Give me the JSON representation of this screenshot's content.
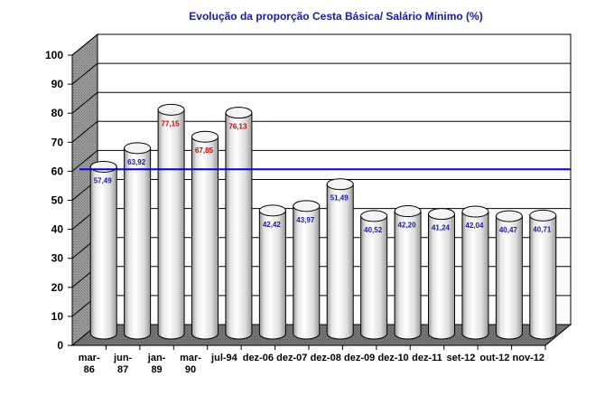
{
  "chart_data": {
    "type": "bar",
    "title": "Evolução da proporção Cesta Básica/ Salário Mínimo (%)",
    "categories": [
      [
        "mar-",
        "86"
      ],
      [
        "jun-",
        "87"
      ],
      [
        "jan-",
        "89"
      ],
      [
        "mar-",
        "90"
      ],
      [
        "jul-94"
      ],
      [
        "dez-06"
      ],
      [
        "dez-07"
      ],
      [
        "dez-08"
      ],
      [
        "dez-09"
      ],
      [
        "dez-10"
      ],
      [
        "dez-11"
      ],
      [
        "set-12"
      ],
      [
        "out-12"
      ],
      [
        "nov-12"
      ]
    ],
    "values": [
      57.49,
      63.92,
      77.15,
      67.85,
      76.13,
      42.42,
      43.97,
      51.49,
      40.52,
      42.2,
      41.24,
      42.04,
      40.47,
      40.71
    ],
    "value_labels": [
      "57,49",
      "63,92",
      "77,15",
      "67,85",
      "76,13",
      "42,42",
      "43,97",
      "51,49",
      "40,52",
      "42,20",
      "41,24",
      "42,04",
      "40,47",
      "40,71"
    ],
    "highlight": [
      false,
      false,
      true,
      true,
      true,
      false,
      false,
      false,
      false,
      false,
      false,
      false,
      false,
      false
    ],
    "reference_line": 58.5,
    "ylim": [
      0,
      100
    ],
    "yticks": [
      0,
      10,
      20,
      30,
      40,
      50,
      60,
      70,
      80,
      90,
      100
    ],
    "grid": true,
    "legend": "none",
    "xlabel": "",
    "ylabel": "",
    "colors": {
      "title": "#1a1aa6",
      "label_normal": "#1a1aa6",
      "label_highlight": "#cc0000",
      "reference_line": "#0000e6",
      "floor": "#808080",
      "wall": "#a6a6a6"
    }
  }
}
